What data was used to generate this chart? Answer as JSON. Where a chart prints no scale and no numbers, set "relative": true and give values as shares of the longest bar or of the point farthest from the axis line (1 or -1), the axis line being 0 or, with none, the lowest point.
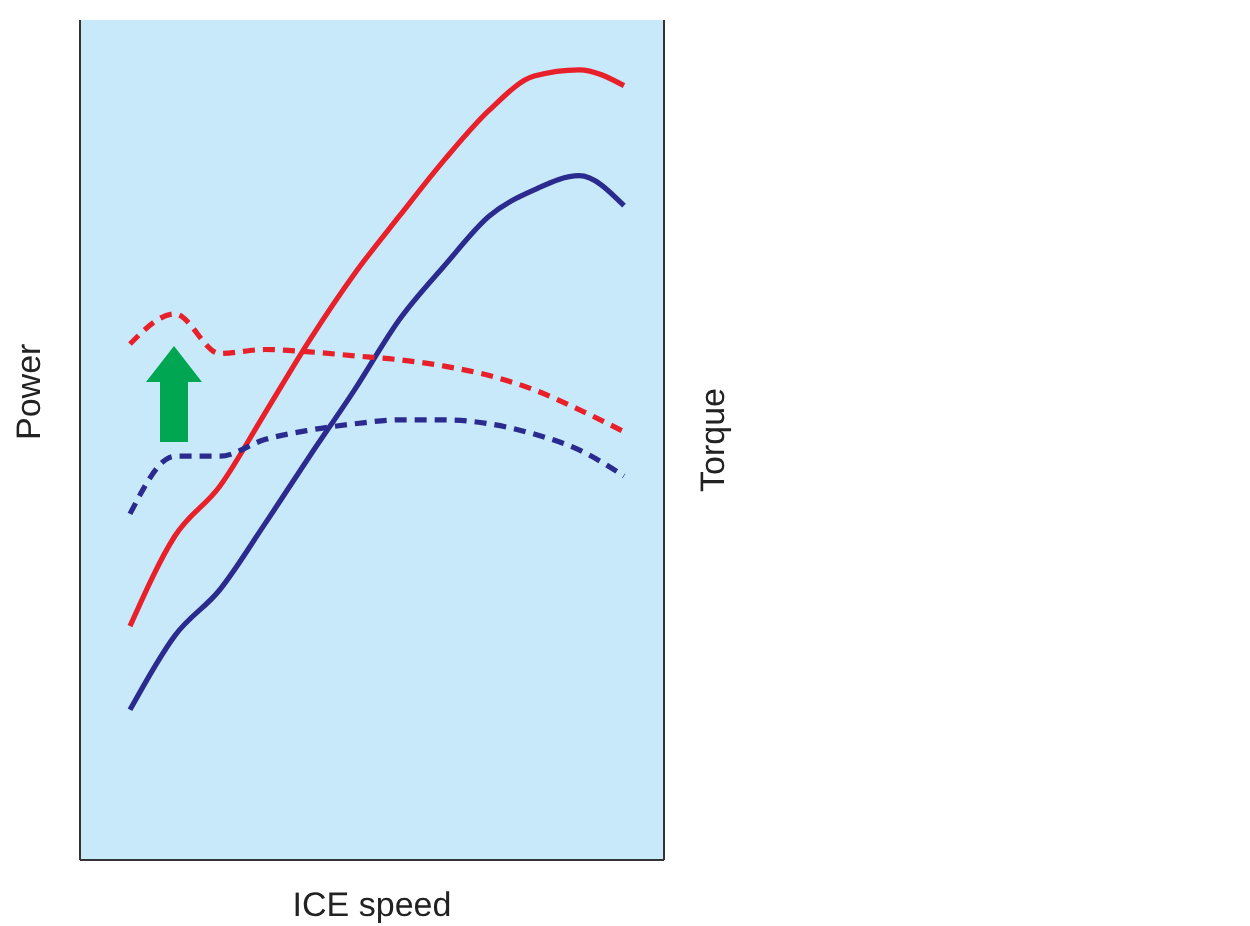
{
  "chart_data": {
    "type": "line",
    "relative": true,
    "xlabel": "ICE speed",
    "ylabel": "Power",
    "y2label": "Torque",
    "grid": false,
    "marker": "none",
    "categories": [
      null,
      null,
      null,
      null,
      null,
      null,
      null,
      null,
      null,
      null,
      null,
      null
    ],
    "series": [
      {
        "color": "#e8202a",
        "line_style": "solid",
        "values": [
          0.296,
          0.41,
          0.473,
          0.565,
          0.658,
          0.742,
          0.815,
          0.886,
          0.949,
          0.992,
          1,
          0.98
        ]
      },
      {
        "color": "#2b2b8f",
        "line_style": "solid",
        "values": [
          0.19,
          0.284,
          0.342,
          0.425,
          0.511,
          0.595,
          0.684,
          0.752,
          0.815,
          0.848,
          0.866,
          0.828
        ]
      },
      {
        "color": "#e8202a",
        "line_style": "dashed",
        "values": [
          0.653,
          0.691,
          0.641,
          0.646,
          0.643,
          0.638,
          0.633,
          0.625,
          0.613,
          0.595,
          0.57,
          0.542
        ]
      },
      {
        "color": "#2b2b8f",
        "line_style": "dashed",
        "values": [
          0.438,
          0.511,
          0.511,
          0.532,
          0.544,
          0.552,
          0.557,
          0.557,
          0.552,
          0.539,
          0.519,
          0.486
        ]
      }
    ]
  }
}
